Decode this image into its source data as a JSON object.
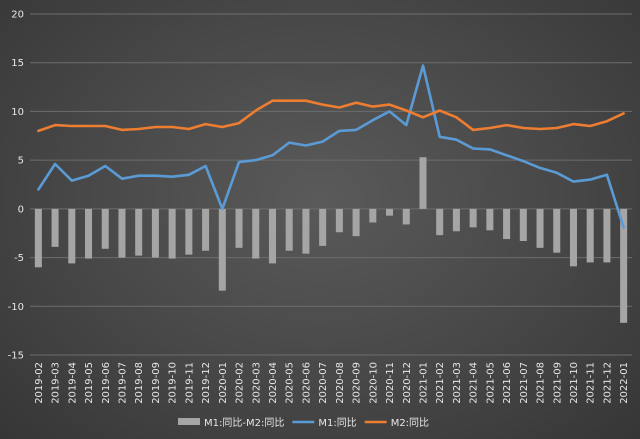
{
  "chart_data": {
    "type": "bar+line",
    "title": "",
    "xlabel": "",
    "ylabel": "",
    "ylim": [
      -15,
      20
    ],
    "yticks": [
      -15,
      -10,
      -5,
      0,
      5,
      10,
      15,
      20
    ],
    "grid": true,
    "legend_position": "bottom",
    "categories": [
      "2019-02",
      "2019-03",
      "2019-04",
      "2019-05",
      "2019-06",
      "2019-07",
      "2019-08",
      "2019-09",
      "2019-10",
      "2019-11",
      "2019-12",
      "2020-01",
      "2020-02",
      "2020-03",
      "2020-04",
      "2020-05",
      "2020-06",
      "2020-07",
      "2020-08",
      "2020-09",
      "2020-10",
      "2020-11",
      "2020-12",
      "2021-01",
      "2021-02",
      "2021-03",
      "2021-04",
      "2021-05",
      "2021-06",
      "2021-07",
      "2021-08",
      "2021-09",
      "2021-10",
      "2021-11",
      "2021-12",
      "2022-01"
    ],
    "series": [
      {
        "name": "M1:同比-M2:同比",
        "type": "bar",
        "color": "#a5a5a5",
        "values": [
          -6.0,
          -3.9,
          -5.6,
          -5.1,
          -4.1,
          -5.0,
          -4.8,
          -5.0,
          -5.1,
          -4.7,
          -4.3,
          -8.4,
          -4.0,
          -5.1,
          -5.6,
          -4.3,
          -4.6,
          -3.8,
          -2.4,
          -2.8,
          -1.4,
          -0.7,
          -1.6,
          5.3,
          -2.7,
          -2.3,
          -1.9,
          -2.2,
          -3.1,
          -3.3,
          -4.0,
          -4.5,
          -5.9,
          -5.5,
          -5.5,
          -11.7
        ]
      },
      {
        "name": "M1:同比",
        "type": "line",
        "color": "#5b9bd5",
        "values": [
          2.0,
          4.6,
          2.9,
          3.4,
          4.4,
          3.1,
          3.4,
          3.4,
          3.3,
          3.5,
          4.4,
          0.0,
          4.8,
          5.0,
          5.5,
          6.8,
          6.5,
          6.9,
          8.0,
          8.1,
          9.1,
          10.0,
          8.6,
          14.7,
          7.4,
          7.1,
          6.2,
          6.1,
          5.5,
          4.9,
          4.2,
          3.7,
          2.8,
          3.0,
          3.5,
          -1.9
        ]
      },
      {
        "name": "M2:同比",
        "type": "line",
        "color": "#ed7d31",
        "values": [
          8.0,
          8.6,
          8.5,
          8.5,
          8.5,
          8.1,
          8.2,
          8.4,
          8.4,
          8.2,
          8.7,
          8.4,
          8.8,
          10.1,
          11.1,
          11.1,
          11.1,
          10.7,
          10.4,
          10.9,
          10.5,
          10.7,
          10.1,
          9.4,
          10.1,
          9.4,
          8.1,
          8.3,
          8.6,
          8.3,
          8.2,
          8.3,
          8.7,
          8.5,
          9.0,
          9.8
        ]
      }
    ]
  }
}
